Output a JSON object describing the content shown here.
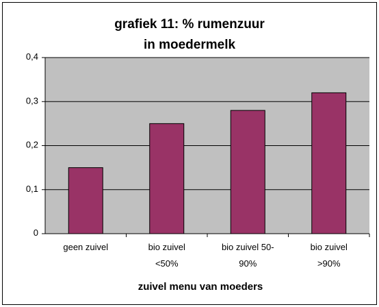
{
  "chart_data": {
    "type": "bar",
    "title": "grafiek 11: % rumenzuur\nin moedermelk",
    "x_label": "zuivel menu van moeders",
    "categories": [
      "geen zuivel",
      "bio zuivel\n<50%",
      "bio zuivel 50-\n90%",
      "bio zuivel\n>90%"
    ],
    "values": [
      0.15,
      0.25,
      0.28,
      0.32
    ],
    "color": "#993366",
    "ylim": [
      0,
      0.4
    ],
    "yticks": [
      0,
      {
        "value": 0.1,
        "label": "0,1"
      },
      {
        "value": 0.2,
        "label": "0,2"
      },
      {
        "value": 0.3,
        "label": "0,3"
      },
      {
        "value": 0.4,
        "label": "0,4"
      }
    ],
    "grid": true
  }
}
